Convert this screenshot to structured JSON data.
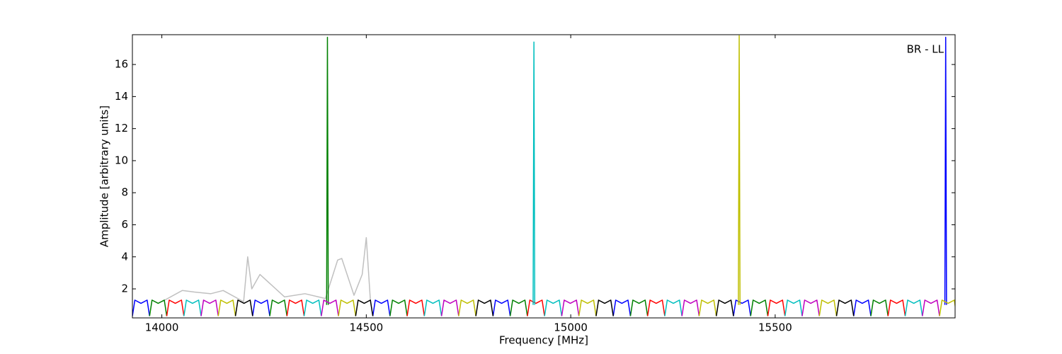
{
  "chart_data": {
    "type": "line",
    "annotation": "BR - LL",
    "x_label": "Frequency [MHz]",
    "y_label": "Amplitude [arbitrary units]",
    "xlim": [
      13928,
      15940
    ],
    "ylim": [
      0.19,
      17.86
    ],
    "xticks": [
      14000,
      14500,
      15000,
      15500
    ],
    "yticks": [
      2,
      4,
      6,
      8,
      10,
      12,
      14,
      16
    ],
    "series": [
      {
        "color": "#c0c0c0",
        "x": [
          14000,
          14050,
          14080,
          14120,
          14150,
          14200,
          14210,
          14220,
          14240,
          14300,
          14350,
          14400,
          14430,
          14440,
          14470,
          14490,
          14500,
          14510
        ],
        "values": [
          1.2,
          1.9,
          1.8,
          1.7,
          1.9,
          1.2,
          4.0,
          2.0,
          2.9,
          1.5,
          1.7,
          1.4,
          3.8,
          3.9,
          1.6,
          2.9,
          5.2,
          1.3
        ]
      },
      {
        "color": "#0000ff",
        "x": [
          13928,
          13934,
          13949,
          13964,
          13970,
          null,
          14222,
          14228,
          14243,
          14258,
          14264,
          null,
          14516,
          14522,
          14537,
          14552,
          14558,
          null,
          14810,
          14816,
          14831,
          14846,
          14852,
          null,
          15104,
          15110,
          15125,
          15140,
          15146,
          null,
          15398,
          15404,
          15419,
          15434,
          15440,
          null,
          15692,
          15698,
          15713,
          15728,
          15734,
          null,
          15915,
          15917,
          15919
        ],
        "values": [
          0.3,
          1.3,
          1.1,
          1.3,
          0.3,
          null,
          0.3,
          1.3,
          1.1,
          1.3,
          0.3,
          null,
          0.3,
          1.3,
          1.1,
          1.3,
          0.3,
          null,
          0.3,
          1.3,
          1.1,
          1.3,
          0.3,
          null,
          0.3,
          1.3,
          1.1,
          1.3,
          0.3,
          null,
          0.3,
          1.3,
          1.1,
          1.3,
          0.3,
          null,
          0.3,
          1.3,
          1.1,
          1.3,
          0.3,
          null,
          1.0,
          17.7,
          1.0
        ]
      },
      {
        "color": "#008000",
        "x": [
          13970,
          13976,
          13991,
          14006,
          14012,
          null,
          14264,
          14270,
          14285,
          14300,
          14306,
          null,
          14558,
          14564,
          14579,
          14594,
          14600,
          null,
          14852,
          14858,
          14873,
          14888,
          14894,
          null,
          15146,
          15152,
          15167,
          15182,
          15188,
          null,
          15440,
          15446,
          15461,
          15476,
          15482,
          null,
          15734,
          15740,
          15755,
          15770,
          15776,
          null,
          14403,
          14405,
          14407
        ],
        "values": [
          0.3,
          1.3,
          1.1,
          1.3,
          0.3,
          null,
          0.3,
          1.3,
          1.1,
          1.3,
          0.3,
          null,
          0.3,
          1.3,
          1.1,
          1.3,
          0.3,
          null,
          0.3,
          1.3,
          1.1,
          1.3,
          0.3,
          null,
          0.3,
          1.3,
          1.1,
          1.3,
          0.3,
          null,
          0.3,
          1.3,
          1.1,
          1.3,
          0.3,
          null,
          0.3,
          1.3,
          1.1,
          1.3,
          0.3,
          null,
          1.0,
          17.7,
          1.0
        ]
      },
      {
        "color": "#ff0000",
        "x": [
          14012,
          14018,
          14033,
          14048,
          14054,
          null,
          14306,
          14312,
          14327,
          14342,
          14348,
          null,
          14600,
          14606,
          14621,
          14636,
          14642,
          null,
          14894,
          14900,
          14915,
          14930,
          14936,
          null,
          15188,
          15194,
          15209,
          15224,
          15230,
          null,
          15482,
          15488,
          15503,
          15518,
          15524,
          null,
          15776,
          15782,
          15797,
          15812,
          15818
        ],
        "values": [
          0.3,
          1.3,
          1.1,
          1.3,
          0.3,
          null,
          0.3,
          1.3,
          1.1,
          1.3,
          0.3,
          null,
          0.3,
          1.3,
          1.1,
          1.3,
          0.3,
          null,
          0.3,
          1.3,
          1.1,
          1.3,
          0.3,
          null,
          0.3,
          1.3,
          1.1,
          1.3,
          0.3,
          null,
          0.3,
          1.3,
          1.1,
          1.3,
          0.3,
          null,
          0.3,
          1.3,
          1.1,
          1.3,
          0.3
        ]
      },
      {
        "color": "#00bfbf",
        "x": [
          14054,
          14060,
          14075,
          14090,
          14096,
          null,
          14348,
          14354,
          14369,
          14384,
          14390,
          null,
          14642,
          14648,
          14663,
          14678,
          14684,
          null,
          14936,
          14942,
          14957,
          14972,
          14978,
          null,
          15230,
          15236,
          15251,
          15266,
          15272,
          null,
          15524,
          15530,
          15545,
          15560,
          15566,
          null,
          15818,
          15824,
          15839,
          15854,
          15860,
          null,
          14908,
          14910,
          14912
        ],
        "values": [
          0.3,
          1.3,
          1.1,
          1.3,
          0.3,
          null,
          0.3,
          1.3,
          1.1,
          1.3,
          0.3,
          null,
          0.3,
          1.3,
          1.1,
          1.3,
          0.3,
          null,
          0.3,
          1.3,
          1.1,
          1.3,
          0.3,
          null,
          0.3,
          1.3,
          1.1,
          1.3,
          0.3,
          null,
          0.3,
          1.3,
          1.1,
          1.3,
          0.3,
          null,
          0.3,
          1.3,
          1.1,
          1.3,
          0.3,
          null,
          1.0,
          17.4,
          1.0
        ]
      },
      {
        "color": "#bf00bf",
        "x": [
          14096,
          14102,
          14117,
          14132,
          14138,
          null,
          14390,
          14396,
          14411,
          14426,
          14432,
          null,
          14684,
          14690,
          14705,
          14720,
          14726,
          null,
          14978,
          14984,
          14999,
          15014,
          15020,
          null,
          15272,
          15278,
          15293,
          15308,
          15314,
          null,
          15566,
          15572,
          15587,
          15602,
          15608,
          null,
          15860,
          15866,
          15881,
          15896,
          15902
        ],
        "values": [
          0.3,
          1.3,
          1.1,
          1.3,
          0.3,
          null,
          0.3,
          1.3,
          1.1,
          1.3,
          0.3,
          null,
          0.3,
          1.3,
          1.1,
          1.3,
          0.3,
          null,
          0.3,
          1.3,
          1.1,
          1.3,
          0.3,
          null,
          0.3,
          1.3,
          1.1,
          1.3,
          0.3,
          null,
          0.3,
          1.3,
          1.1,
          1.3,
          0.3,
          null,
          0.3,
          1.3,
          1.1,
          1.3,
          0.3
        ]
      },
      {
        "color": "#bfbf00",
        "x": [
          14138,
          14144,
          14159,
          14174,
          14180,
          null,
          14432,
          14438,
          14453,
          14468,
          14474,
          null,
          14726,
          14732,
          14747,
          14762,
          14768,
          null,
          15020,
          15026,
          15041,
          15056,
          15062,
          null,
          15314,
          15320,
          15335,
          15350,
          15356,
          null,
          15608,
          15614,
          15629,
          15644,
          15650,
          null,
          15902,
          15908,
          15923,
          15938,
          15944,
          null,
          15410,
          15412,
          15414
        ],
        "values": [
          0.3,
          1.3,
          1.1,
          1.3,
          0.3,
          null,
          0.3,
          1.3,
          1.1,
          1.3,
          0.3,
          null,
          0.3,
          1.3,
          1.1,
          1.3,
          0.3,
          null,
          0.3,
          1.3,
          1.1,
          1.3,
          0.3,
          null,
          0.3,
          1.3,
          1.1,
          1.3,
          0.3,
          null,
          0.3,
          1.3,
          1.1,
          1.3,
          0.3,
          null,
          0.3,
          1.3,
          1.1,
          1.3,
          0.3,
          null,
          1.0,
          17.8,
          1.0
        ]
      },
      {
        "color": "#000000",
        "x": [
          14180,
          14186,
          14201,
          14216,
          14222,
          null,
          14474,
          14480,
          14495,
          14510,
          14516,
          null,
          14768,
          14774,
          14789,
          14804,
          14810,
          null,
          15062,
          15068,
          15083,
          15098,
          15104,
          null,
          15356,
          15362,
          15377,
          15392,
          15398,
          null,
          15650,
          15656,
          15671,
          15686,
          15692
        ],
        "values": [
          0.3,
          1.3,
          1.1,
          1.3,
          0.3,
          null,
          0.3,
          1.3,
          1.1,
          1.3,
          0.3,
          null,
          0.3,
          1.3,
          1.1,
          1.3,
          0.3,
          null,
          0.3,
          1.3,
          1.1,
          1.3,
          0.3,
          null,
          0.3,
          1.3,
          1.1,
          1.3,
          0.3,
          null,
          0.3,
          1.3,
          1.1,
          1.3,
          0.3
        ]
      }
    ]
  }
}
